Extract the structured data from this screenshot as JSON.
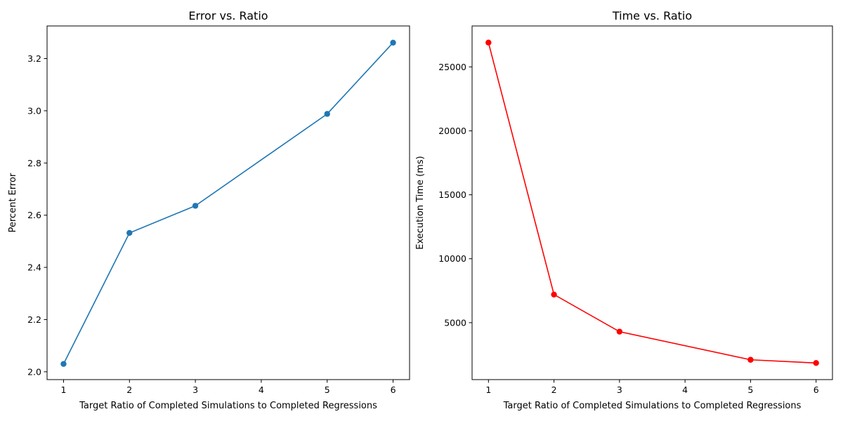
{
  "chart_data": [
    {
      "type": "line",
      "title": "Error vs. Ratio",
      "xlabel": "Target Ratio of Completed Simulations to Completed Regressions",
      "ylabel": "Percent Error",
      "xlim": [
        0.75,
        6.25
      ],
      "ylim": [
        1.97,
        3.325
      ],
      "xticks": [
        1,
        2,
        3,
        4,
        5,
        6
      ],
      "xtick_labels": [
        "1",
        "2",
        "3",
        "4",
        "5",
        "6"
      ],
      "yticks": [
        2.0,
        2.2,
        2.4,
        2.6,
        2.8,
        3.0,
        3.2
      ],
      "ytick_labels": [
        "2.0",
        "2.2",
        "2.4",
        "2.6",
        "2.8",
        "3.0",
        "3.2"
      ],
      "grid": false,
      "color": "#1f77b4",
      "marker": "circle",
      "x": [
        1,
        2,
        3,
        5,
        6
      ],
      "y": [
        2.03,
        2.532,
        2.636,
        2.988,
        3.261
      ]
    },
    {
      "type": "line",
      "title": "Time vs. Ratio",
      "xlabel": "Target Ratio of Completed Simulations to Completed Regressions",
      "ylabel": "Execution Time (ms)",
      "xlim": [
        0.75,
        6.25
      ],
      "ylim": [
        550,
        28200
      ],
      "xticks": [
        1,
        2,
        3,
        4,
        5,
        6
      ],
      "xtick_labels": [
        "1",
        "2",
        "3",
        "4",
        "5",
        "6"
      ],
      "yticks": [
        5000,
        10000,
        15000,
        20000,
        25000
      ],
      "ytick_labels": [
        "5000",
        "10000",
        "15000",
        "20000",
        "25000"
      ],
      "grid": false,
      "color": "#ff0000",
      "marker": "circle",
      "x": [
        1,
        2,
        3,
        5,
        6
      ],
      "y": [
        26900,
        7200,
        4300,
        2100,
        1850
      ]
    }
  ]
}
